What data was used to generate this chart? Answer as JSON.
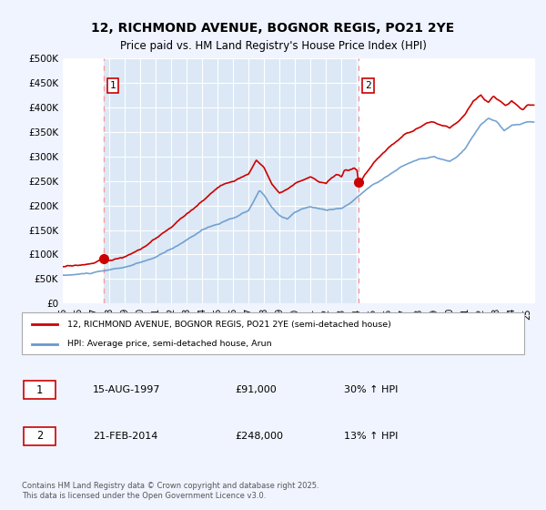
{
  "title": "12, RICHMOND AVENUE, BOGNOR REGIS, PO21 2YE",
  "subtitle": "Price paid vs. HM Land Registry's House Price Index (HPI)",
  "background_color": "#f0f4ff",
  "plot_bg_color": "#dce8f5",
  "shade_color": "#dce8f5",
  "legend_label_red": "12, RICHMOND AVENUE, BOGNOR REGIS, PO21 2YE (semi-detached house)",
  "legend_label_blue": "HPI: Average price, semi-detached house, Arun",
  "transaction1_date": "15-AUG-1997",
  "transaction1_price": "£91,000",
  "transaction1_hpi": "30% ↑ HPI",
  "transaction2_date": "21-FEB-2014",
  "transaction2_price": "£248,000",
  "transaction2_hpi": "13% ↑ HPI",
  "footer": "Contains HM Land Registry data © Crown copyright and database right 2025.\nThis data is licensed under the Open Government Licence v3.0.",
  "ylim": [
    0,
    500000
  ],
  "yticks": [
    0,
    50000,
    100000,
    150000,
    200000,
    250000,
    300000,
    350000,
    400000,
    450000,
    500000
  ],
  "ytick_labels": [
    "£0",
    "£50K",
    "£100K",
    "£150K",
    "£200K",
    "£250K",
    "£300K",
    "£350K",
    "£400K",
    "£450K",
    "£500K"
  ],
  "line_color_red": "#cc0000",
  "line_color_blue": "#6699cc",
  "vline_color": "#ff9999",
  "marker_color_red": "#cc0000",
  "transaction1_x": 1997.625,
  "transaction2_x": 2014.125,
  "transaction1_y": 91000,
  "transaction2_y": 248000,
  "xmin": 1995,
  "xmax": 2025.5
}
